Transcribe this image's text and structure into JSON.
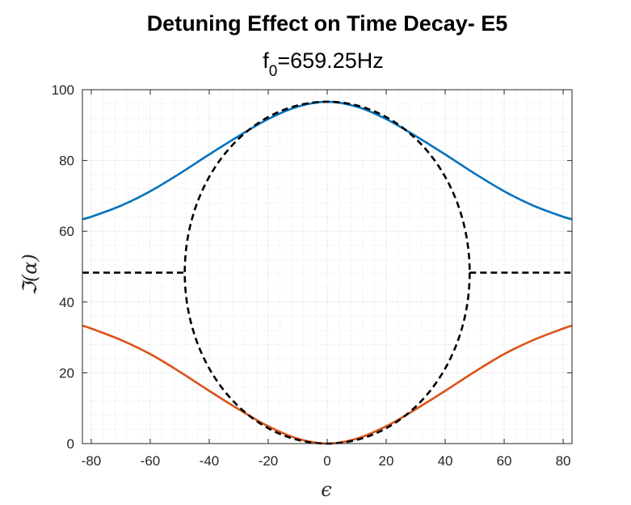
{
  "chart_data": {
    "type": "line",
    "title": "Detuning Effect on Time Decay- E5",
    "subtitle": {
      "base": "f",
      "subscript": "0",
      "rest": "=659.25Hz"
    },
    "xlabel": "ϵ",
    "ylabel": "ℑ(α)",
    "xlim": [
      -83,
      83
    ],
    "ylim": [
      0,
      100
    ],
    "xticks": [
      -80,
      -60,
      -40,
      -20,
      0,
      20,
      40,
      60,
      80
    ],
    "yticks": [
      0,
      20,
      40,
      60,
      80,
      100
    ],
    "grid": "on (major and minor, dotted)",
    "series": [
      {
        "style": "solid",
        "color": "#0072BD",
        "x": [
          -83,
          -80,
          -70,
          -60,
          -50,
          -40,
          -30,
          -20,
          -10,
          0,
          10,
          20,
          30,
          40,
          50,
          60,
          70,
          80,
          83
        ],
        "y": [
          63.4,
          64.1,
          67.2,
          71.3,
          76.3,
          81.7,
          86.9,
          91.7,
          95.2,
          96.6,
          95.2,
          91.7,
          86.9,
          81.7,
          76.3,
          71.3,
          67.2,
          64.1,
          63.4
        ]
      },
      {
        "style": "solid",
        "color": "#D95319",
        "x": [
          -83,
          -80,
          -70,
          -60,
          -50,
          -40,
          -30,
          -20,
          -10,
          0,
          10,
          20,
          30,
          40,
          50,
          60,
          70,
          80,
          83
        ],
        "y": [
          33.3,
          32.5,
          29.3,
          25.3,
          20.3,
          14.9,
          9.7,
          4.9,
          1.4,
          0,
          1.4,
          4.9,
          9.7,
          14.9,
          20.3,
          25.3,
          29.3,
          32.5,
          33.3
        ]
      },
      {
        "style": "dashed",
        "color": "#000000",
        "shape": "flat segments joined by an ellipse",
        "center": [
          0,
          48.3
        ],
        "x_radius": 48.3,
        "y_radius": 48.3,
        "flat_y": 48.3,
        "flat_segments": [
          [
            -83,
            -48.3
          ],
          [
            48.3,
            83
          ]
        ]
      }
    ]
  }
}
